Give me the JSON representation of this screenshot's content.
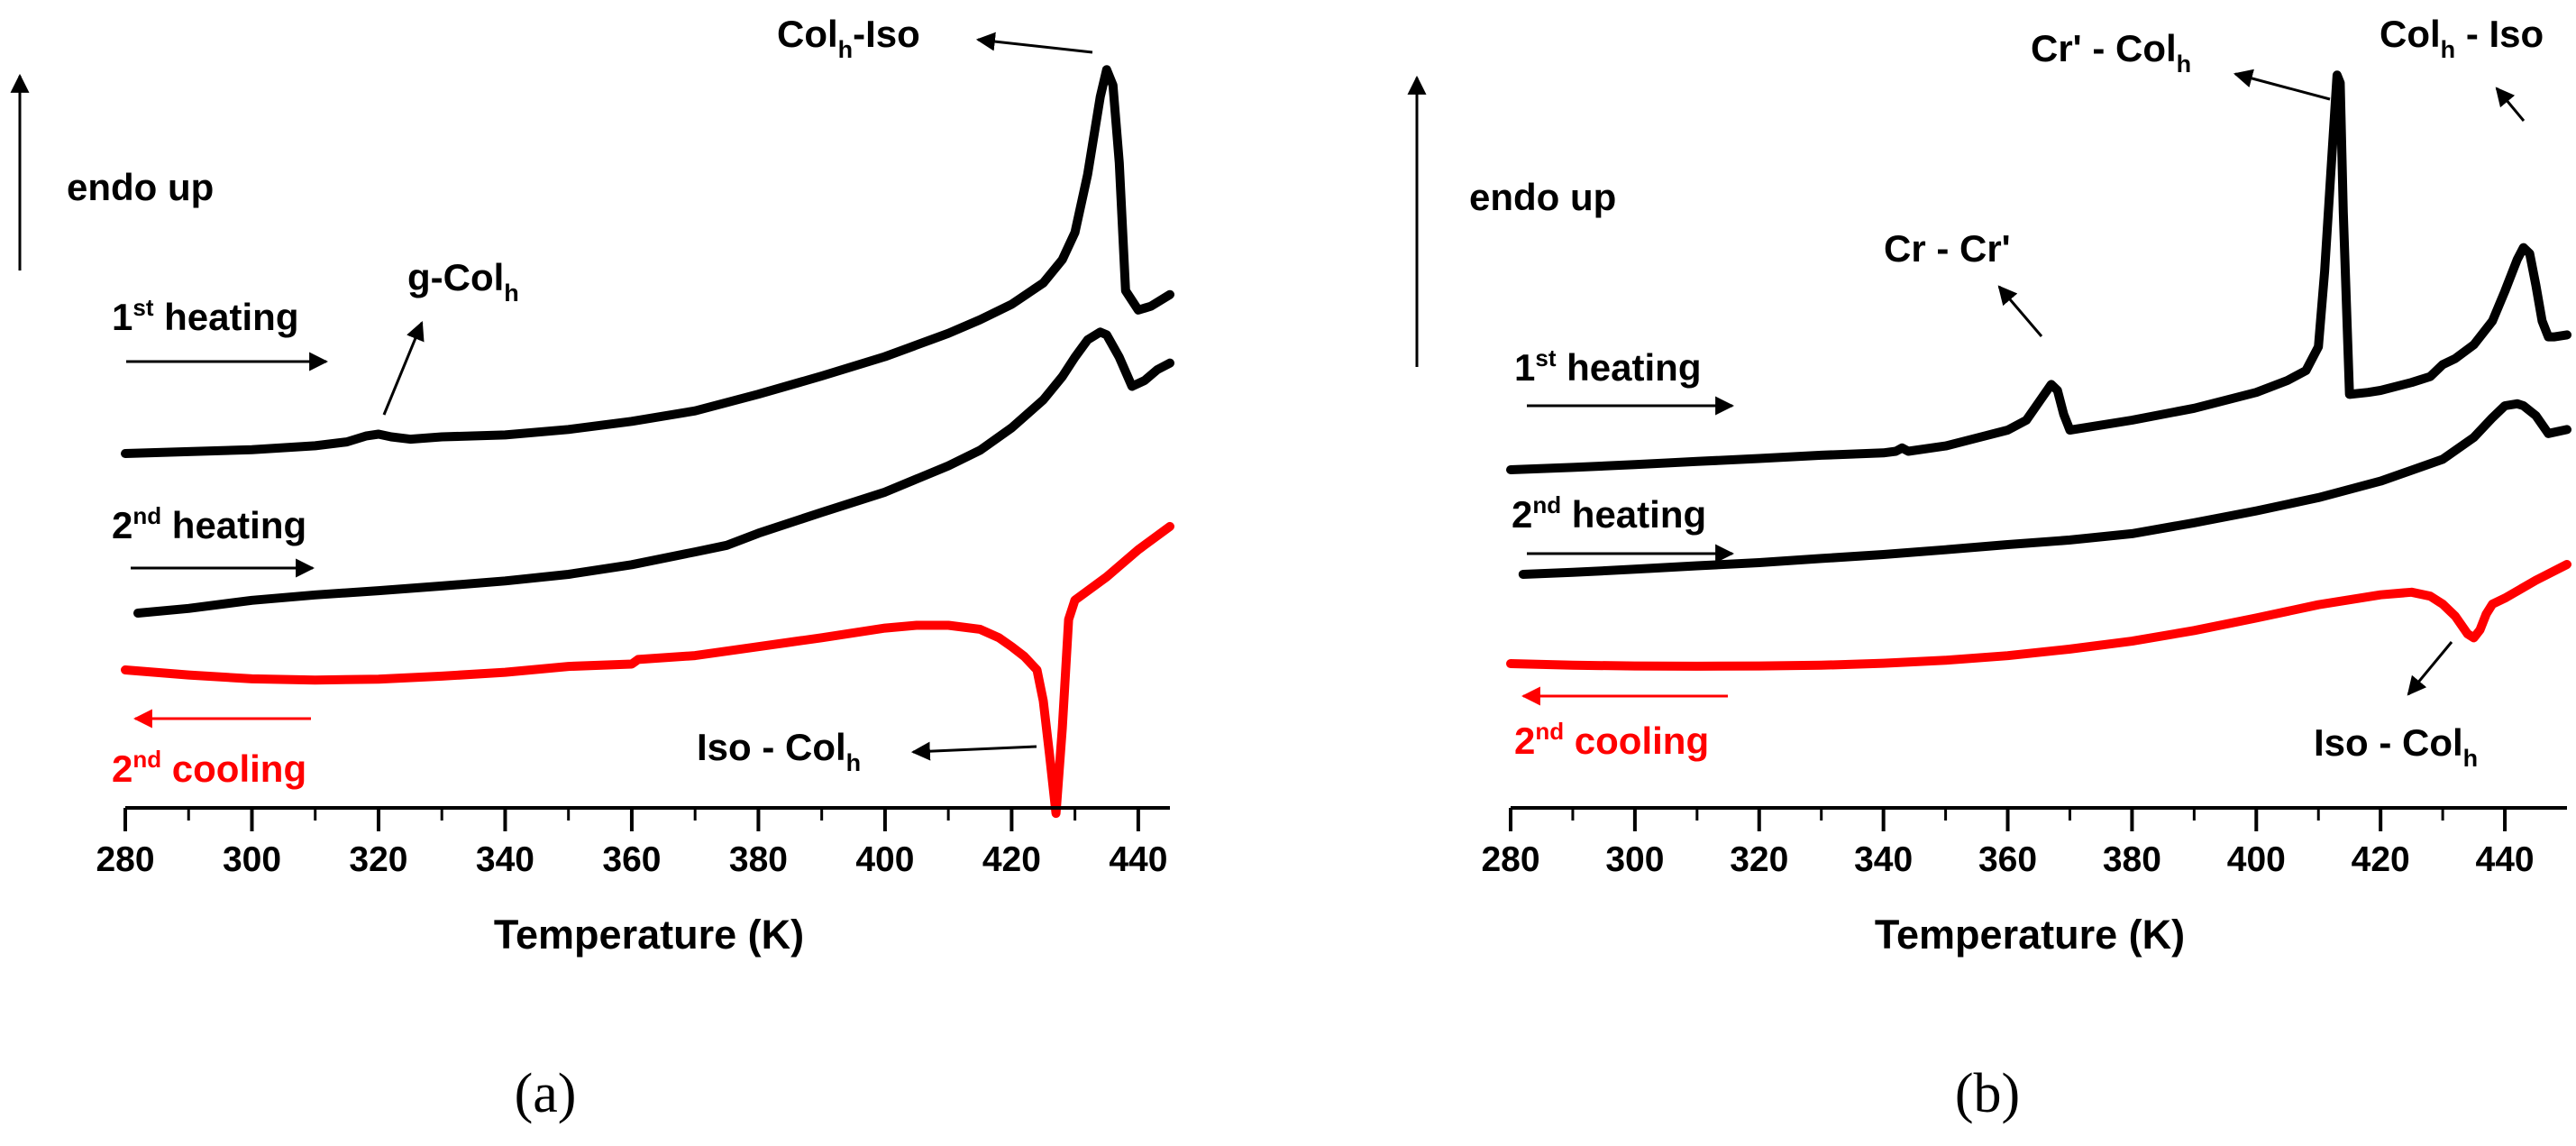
{
  "colors": {
    "heating": "#000000",
    "cooling": "#ff0000"
  },
  "chart_data": [
    {
      "type": "line",
      "panel": "a",
      "caption": "(a)",
      "xlabel": "Temperature (K)",
      "ylabel_annotation": "endo up",
      "xlim": [
        280,
        445
      ],
      "xticks": [
        280,
        300,
        320,
        340,
        360,
        380,
        400,
        420,
        440
      ],
      "y_units": "arbitrary (heat flow, endo up)",
      "series": [
        {
          "name": "1st heating",
          "label_base": "1",
          "label_sup": "st",
          "label_rest": " heating",
          "color": "#000000",
          "direction": "right",
          "x": [
            280,
            290,
            300,
            310,
            315,
            318,
            320,
            322,
            325,
            330,
            340,
            350,
            360,
            370,
            380,
            390,
            400,
            410,
            415,
            420,
            425,
            428,
            430,
            432,
            434,
            435,
            436,
            437,
            438,
            440,
            442,
            445
          ],
          "y": [
            0.0,
            0.5,
            1.0,
            2.0,
            3.0,
            4.5,
            5.0,
            4.3,
            3.7,
            4.3,
            4.8,
            6.2,
            8.3,
            11.0,
            15.3,
            20.0,
            25.0,
            31.0,
            34.5,
            38.5,
            44.0,
            50.0,
            57.0,
            72.0,
            92.0,
            99.0,
            95.0,
            75.0,
            42.0,
            37.0,
            38.0,
            41.0
          ]
        },
        {
          "name": "2nd heating",
          "label_base": "2",
          "label_sup": "nd",
          "label_rest": " heating",
          "color": "#000000",
          "direction": "right",
          "x": [
            282,
            290,
            300,
            310,
            320,
            330,
            340,
            350,
            360,
            370,
            375,
            380,
            390,
            400,
            410,
            415,
            420,
            425,
            428,
            430,
            432,
            434,
            435,
            437,
            439,
            441,
            443,
            445
          ],
          "y": [
            0.0,
            1.2,
            3.3,
            4.7,
            5.8,
            7.0,
            8.3,
            10.0,
            12.5,
            15.8,
            17.5,
            20.6,
            26.0,
            31.2,
            38.0,
            42.0,
            47.8,
            55.0,
            61.0,
            66.0,
            70.5,
            72.5,
            71.8,
            66.0,
            58.5,
            60.0,
            62.8,
            64.5
          ]
        },
        {
          "name": "2nd cooling",
          "label_base": "2",
          "label_sup": "nd",
          "label_rest": " cooling",
          "color": "#ff0000",
          "direction": "left",
          "x": [
            280,
            290,
            300,
            310,
            320,
            330,
            340,
            350,
            360,
            361,
            370,
            380,
            390,
            400,
            405,
            410,
            415,
            418,
            420,
            422,
            424,
            425,
            426,
            427,
            428,
            429,
            430,
            435,
            440,
            445
          ],
          "y": [
            0.0,
            -1.3,
            -2.3,
            -2.6,
            -2.4,
            -1.6,
            -0.6,
            0.9,
            1.5,
            2.7,
            3.7,
            6.0,
            8.3,
            10.8,
            11.5,
            11.5,
            10.5,
            8.3,
            6.0,
            3.5,
            0.0,
            -8.0,
            -22.0,
            -37.0,
            -15.0,
            13.0,
            18.0,
            24.0,
            31.0,
            37.0
          ]
        }
      ],
      "annotations": [
        {
          "base": "Col",
          "sub": "h",
          "rest": "-Iso"
        },
        {
          "base": "g-Col",
          "sub": "h",
          "rest": ""
        },
        {
          "base": "Iso - Col",
          "sub": "h",
          "rest": ""
        }
      ]
    },
    {
      "type": "line",
      "panel": "b",
      "caption": "(b)",
      "xlabel": "Temperature (K)",
      "ylabel_annotation": "endo up",
      "xlim": [
        280,
        450
      ],
      "xticks": [
        280,
        300,
        320,
        340,
        360,
        380,
        400,
        420,
        440
      ],
      "y_units": "arbitrary (heat flow, endo up)",
      "series": [
        {
          "name": "1st heating",
          "label_base": "1",
          "label_sup": "st",
          "label_rest": " heating",
          "color": "#000000",
          "direction": "right",
          "x": [
            280,
            290,
            300,
            310,
            320,
            330,
            340,
            342,
            343,
            344,
            350,
            355,
            360,
            363,
            365,
            367,
            368,
            369,
            370,
            372,
            380,
            390,
            400,
            405,
            408,
            410,
            411,
            412,
            413,
            413.5,
            414,
            415,
            418,
            420,
            425,
            428,
            430,
            432,
            435,
            438,
            440,
            442,
            443,
            444,
            445,
            446,
            447,
            448,
            450
          ],
          "y": [
            0.0,
            1.2,
            2.6,
            4.2,
            5.7,
            7.3,
            8.5,
            9.3,
            11.0,
            9.3,
            12.0,
            16.0,
            20.0,
            25.0,
            34.0,
            43.0,
            40.0,
            28.0,
            20.0,
            21.0,
            25.0,
            31.0,
            39.0,
            45.0,
            50.0,
            62.0,
            100.0,
            150.0,
            199.0,
            195.0,
            130.0,
            38.0,
            39.0,
            40.0,
            44.0,
            47.0,
            53.0,
            56.0,
            63.0,
            75.0,
            90.0,
            106.0,
            112.0,
            109.0,
            93.0,
            75.0,
            67.0,
            67.0,
            68.0
          ]
        },
        {
          "name": "2nd heating",
          "label_base": "2",
          "label_sup": "nd",
          "label_rest": " heating",
          "color": "#000000",
          "direction": "right",
          "x": [
            282,
            290,
            300,
            310,
            320,
            330,
            340,
            350,
            360,
            370,
            380,
            390,
            400,
            410,
            420,
            430,
            435,
            438,
            440,
            442,
            443,
            445,
            447,
            450
          ],
          "y": [
            0.0,
            1.0,
            2.6,
            4.3,
            5.9,
            8.0,
            10.0,
            12.4,
            15.0,
            17.3,
            20.5,
            26.0,
            32.0,
            38.7,
            47.0,
            58.0,
            69.0,
            79.0,
            85.0,
            86.0,
            85.0,
            80.0,
            71.0,
            73.0
          ]
        },
        {
          "name": "2nd cooling",
          "label_base": "2",
          "label_sup": "nd",
          "label_rest": " cooling",
          "color": "#ff0000",
          "direction": "left",
          "x": [
            280,
            290,
            300,
            310,
            320,
            330,
            340,
            350,
            360,
            370,
            380,
            390,
            400,
            410,
            420,
            425,
            428,
            430,
            432,
            434,
            435,
            436,
            437,
            438,
            440,
            445,
            450
          ],
          "y": [
            0.0,
            -0.8,
            -1.2,
            -1.3,
            -1.2,
            -0.8,
            0.2,
            1.7,
            4.0,
            7.3,
            11.3,
            16.7,
            23.0,
            29.7,
            34.7,
            36.0,
            34.0,
            30.0,
            24.0,
            15.0,
            13.0,
            17.0,
            25.0,
            30.0,
            33.0,
            42.0,
            50.0
          ]
        }
      ],
      "annotations": [
        {
          "base": "Cr' - Col",
          "sub": "h",
          "rest": ""
        },
        {
          "base": "Col",
          "sub": "h",
          "rest": " - Iso"
        },
        {
          "base": "Cr - Cr'",
          "sub": "",
          "rest": ""
        },
        {
          "base": "Iso - Col",
          "sub": "h",
          "rest": ""
        }
      ]
    }
  ]
}
